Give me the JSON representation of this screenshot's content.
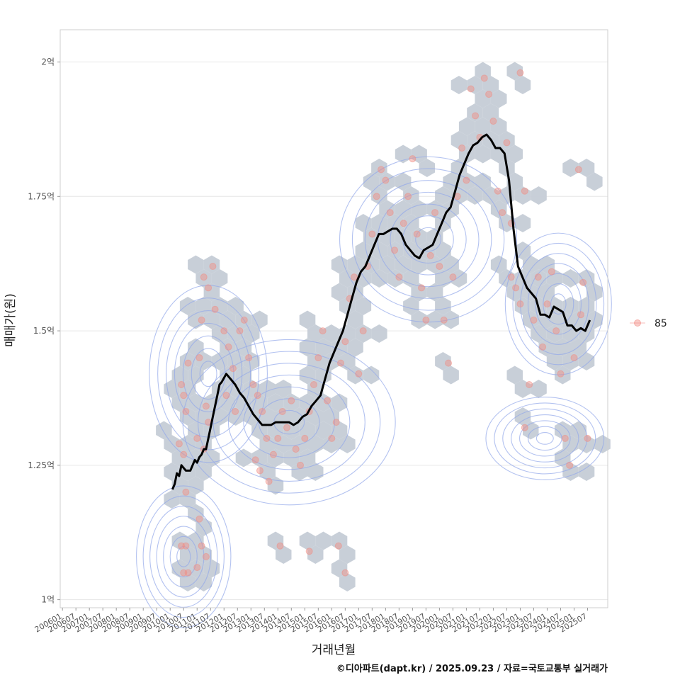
{
  "chart_data": {
    "type": "scatter",
    "xlabel": "거래년월",
    "ylabel": "매매가(원)",
    "caption": "©디아파트(dapt.kr) / 2025.09.23 / 자료=국토교통부 실거래가",
    "x_ticks": [
      "200601",
      "200607",
      "200701",
      "200707",
      "200801",
      "200807",
      "200901",
      "200907",
      "201001",
      "201007",
      "201101",
      "201107",
      "201201",
      "201207",
      "201301",
      "201307",
      "201401",
      "201407",
      "201501",
      "201507",
      "201601",
      "201607",
      "201701",
      "201707",
      "201801",
      "201807",
      "201901",
      "201907",
      "202001",
      "202007",
      "202101",
      "202107",
      "202201",
      "202207",
      "202301",
      "202307",
      "202401",
      "202407",
      "202501",
      "202507"
    ],
    "y_ticks": [
      {
        "value": 1.0,
        "label": "1억"
      },
      {
        "value": 1.25,
        "label": "1.25억"
      },
      {
        "value": 1.5,
        "label": "1.5억"
      },
      {
        "value": 1.75,
        "label": "1.75억"
      },
      {
        "value": 2.0,
        "label": "2억"
      }
    ],
    "xlim": [
      "2005-12",
      "2026-04"
    ],
    "ylim": [
      0.985,
      2.06
    ],
    "grid": true,
    "legend": {
      "position": "right",
      "entries": [
        {
          "label": "85",
          "color": "#f28b82"
        }
      ]
    },
    "colors": {
      "points": "#f28b82",
      "hex": "#c5ccd6",
      "contour": "#93a8ea",
      "trend": "#000000"
    },
    "trend_series": {
      "name": "moving-average",
      "x": [
        "2010-02",
        "2010-03",
        "2010-04",
        "2010-05",
        "2010-06",
        "2010-07",
        "2010-08",
        "2010-09",
        "2010-10",
        "2010-11",
        "2010-12",
        "2011-01",
        "2011-02",
        "2011-03",
        "2011-04",
        "2011-05",
        "2011-06",
        "2011-07",
        "2011-08",
        "2011-09",
        "2011-10",
        "2011-11",
        "2011-12",
        "2012-02",
        "2012-04",
        "2012-06",
        "2012-08",
        "2012-10",
        "2012-12",
        "2013-02",
        "2013-04",
        "2013-06",
        "2013-08",
        "2013-10",
        "2013-12",
        "2014-02",
        "2014-04",
        "2014-06",
        "2014-08",
        "2014-10",
        "2014-12",
        "2015-02",
        "2015-04",
        "2015-06",
        "2015-08",
        "2015-10",
        "2015-12",
        "2016-02",
        "2016-04",
        "2016-06",
        "2016-08",
        "2016-10",
        "2016-12",
        "2017-02",
        "2017-04",
        "2017-06",
        "2017-08",
        "2017-10",
        "2017-12",
        "2018-02",
        "2018-04",
        "2018-06",
        "2018-08",
        "2018-10",
        "2018-12",
        "2019-02",
        "2019-04",
        "2019-06",
        "2019-08",
        "2019-10",
        "2019-12",
        "2020-02",
        "2020-04",
        "2020-06",
        "2020-08",
        "2020-10",
        "2020-12",
        "2021-02",
        "2021-04",
        "2021-06",
        "2021-08",
        "2021-10",
        "2021-12",
        "2022-02",
        "2022-04",
        "2022-06",
        "2022-08",
        "2022-10",
        "2022-12",
        "2023-02",
        "2023-04",
        "2023-06",
        "2023-08",
        "2023-10",
        "2023-12",
        "2024-02",
        "2024-04",
        "2024-06",
        "2024-08",
        "2024-10",
        "2024-12",
        "2025-02",
        "2025-04",
        "2025-06",
        "2025-08"
      ],
      "y": [
        1.205,
        1.215,
        1.235,
        1.23,
        1.25,
        1.245,
        1.24,
        1.24,
        1.24,
        1.25,
        1.26,
        1.255,
        1.265,
        1.27,
        1.28,
        1.28,
        1.3,
        1.32,
        1.34,
        1.36,
        1.38,
        1.4,
        1.405,
        1.42,
        1.41,
        1.4,
        1.385,
        1.375,
        1.36,
        1.345,
        1.335,
        1.325,
        1.325,
        1.325,
        1.33,
        1.33,
        1.33,
        1.33,
        1.325,
        1.33,
        1.34,
        1.345,
        1.36,
        1.37,
        1.38,
        1.41,
        1.44,
        1.46,
        1.48,
        1.5,
        1.53,
        1.56,
        1.59,
        1.61,
        1.62,
        1.64,
        1.66,
        1.68,
        1.68,
        1.685,
        1.69,
        1.69,
        1.68,
        1.66,
        1.65,
        1.64,
        1.635,
        1.65,
        1.655,
        1.66,
        1.68,
        1.7,
        1.72,
        1.73,
        1.76,
        1.79,
        1.81,
        1.83,
        1.845,
        1.85,
        1.86,
        1.865,
        1.855,
        1.84,
        1.84,
        1.83,
        1.78,
        1.69,
        1.62,
        1.6,
        1.58,
        1.57,
        1.56,
        1.53,
        1.53,
        1.525,
        1.545,
        1.54,
        1.535,
        1.51,
        1.51,
        1.5,
        1.505,
        1.5,
        1.52
      ]
    },
    "points": [
      {
        "x": "2010-06",
        "y": 1.4
      },
      {
        "x": "2010-07",
        "y": 1.38
      },
      {
        "x": "2010-05",
        "y": 1.29
      },
      {
        "x": "2010-08",
        "y": 1.35
      },
      {
        "x": "2010-09",
        "y": 1.44
      },
      {
        "x": "2010-07",
        "y": 1.27
      },
      {
        "x": "2010-08",
        "y": 1.2
      },
      {
        "x": "2010-06",
        "y": 1.1
      },
      {
        "x": "2010-08",
        "y": 1.1
      },
      {
        "x": "2010-09",
        "y": 1.05
      },
      {
        "x": "2010-07",
        "y": 1.05
      },
      {
        "x": "2011-01",
        "y": 1.06
      },
      {
        "x": "2011-03",
        "y": 1.1
      },
      {
        "x": "2011-05",
        "y": 1.08
      },
      {
        "x": "2011-02",
        "y": 1.15
      },
      {
        "x": "2011-01",
        "y": 1.3
      },
      {
        "x": "2011-04",
        "y": 1.28
      },
      {
        "x": "2011-06",
        "y": 1.33
      },
      {
        "x": "2011-05",
        "y": 1.36
      },
      {
        "x": "2011-02",
        "y": 1.45
      },
      {
        "x": "2011-03",
        "y": 1.52
      },
      {
        "x": "2011-04",
        "y": 1.6
      },
      {
        "x": "2011-06",
        "y": 1.58
      },
      {
        "x": "2011-08",
        "y": 1.62
      },
      {
        "x": "2011-09",
        "y": 1.54
      },
      {
        "x": "2012-01",
        "y": 1.5
      },
      {
        "x": "2012-03",
        "y": 1.47
      },
      {
        "x": "2012-05",
        "y": 1.43
      },
      {
        "x": "2012-02",
        "y": 1.38
      },
      {
        "x": "2012-06",
        "y": 1.35
      },
      {
        "x": "2012-08",
        "y": 1.5
      },
      {
        "x": "2012-10",
        "y": 1.52
      },
      {
        "x": "2012-12",
        "y": 1.45
      },
      {
        "x": "2013-02",
        "y": 1.4
      },
      {
        "x": "2013-04",
        "y": 1.38
      },
      {
        "x": "2013-06",
        "y": 1.35
      },
      {
        "x": "2013-08",
        "y": 1.3
      },
      {
        "x": "2013-03",
        "y": 1.26
      },
      {
        "x": "2013-05",
        "y": 1.24
      },
      {
        "x": "2013-09",
        "y": 1.22
      },
      {
        "x": "2013-11",
        "y": 1.27
      },
      {
        "x": "2014-01",
        "y": 1.3
      },
      {
        "x": "2014-03",
        "y": 1.35
      },
      {
        "x": "2014-05",
        "y": 1.32
      },
      {
        "x": "2014-07",
        "y": 1.37
      },
      {
        "x": "2014-09",
        "y": 1.28
      },
      {
        "x": "2014-11",
        "y": 1.25
      },
      {
        "x": "2015-01",
        "y": 1.3
      },
      {
        "x": "2015-03",
        "y": 1.35
      },
      {
        "x": "2015-05",
        "y": 1.4
      },
      {
        "x": "2015-07",
        "y": 1.45
      },
      {
        "x": "2015-09",
        "y": 1.5
      },
      {
        "x": "2015-11",
        "y": 1.37
      },
      {
        "x": "2016-01",
        "y": 1.3
      },
      {
        "x": "2016-03",
        "y": 1.33
      },
      {
        "x": "2016-05",
        "y": 1.44
      },
      {
        "x": "2016-07",
        "y": 1.48
      },
      {
        "x": "2016-09",
        "y": 1.56
      },
      {
        "x": "2016-11",
        "y": 1.6
      },
      {
        "x": "2017-01",
        "y": 1.42
      },
      {
        "x": "2017-03",
        "y": 1.5
      },
      {
        "x": "2017-05",
        "y": 1.62
      },
      {
        "x": "2017-07",
        "y": 1.68
      },
      {
        "x": "2017-09",
        "y": 1.75
      },
      {
        "x": "2017-11",
        "y": 1.8
      },
      {
        "x": "2018-01",
        "y": 1.78
      },
      {
        "x": "2018-03",
        "y": 1.72
      },
      {
        "x": "2018-05",
        "y": 1.65
      },
      {
        "x": "2018-07",
        "y": 1.6
      },
      {
        "x": "2018-09",
        "y": 1.7
      },
      {
        "x": "2018-11",
        "y": 1.75
      },
      {
        "x": "2019-01",
        "y": 1.82
      },
      {
        "x": "2019-03",
        "y": 1.68
      },
      {
        "x": "2019-05",
        "y": 1.58
      },
      {
        "x": "2019-07",
        "y": 1.52
      },
      {
        "x": "2019-09",
        "y": 1.64
      },
      {
        "x": "2019-11",
        "y": 1.72
      },
      {
        "x": "2020-01",
        "y": 1.62
      },
      {
        "x": "2020-03",
        "y": 1.52
      },
      {
        "x": "2020-05",
        "y": 1.44
      },
      {
        "x": "2020-07",
        "y": 1.6
      },
      {
        "x": "2020-09",
        "y": 1.75
      },
      {
        "x": "2020-11",
        "y": 1.84
      },
      {
        "x": "2021-01",
        "y": 1.78
      },
      {
        "x": "2021-03",
        "y": 1.95
      },
      {
        "x": "2021-05",
        "y": 1.9
      },
      {
        "x": "2021-07",
        "y": 1.86
      },
      {
        "x": "2021-09",
        "y": 1.97
      },
      {
        "x": "2021-11",
        "y": 1.94
      },
      {
        "x": "2022-01",
        "y": 1.89
      },
      {
        "x": "2022-03",
        "y": 1.76
      },
      {
        "x": "2022-05",
        "y": 1.72
      },
      {
        "x": "2022-07",
        "y": 1.85
      },
      {
        "x": "2022-09",
        "y": 1.6
      },
      {
        "x": "2022-11",
        "y": 1.58
      },
      {
        "x": "2023-01",
        "y": 1.55
      },
      {
        "x": "2023-03",
        "y": 1.32
      },
      {
        "x": "2023-05",
        "y": 1.4
      },
      {
        "x": "2023-07",
        "y": 1.52
      },
      {
        "x": "2023-09",
        "y": 1.6
      },
      {
        "x": "2023-11",
        "y": 1.47
      },
      {
        "x": "2024-01",
        "y": 1.55
      },
      {
        "x": "2024-03",
        "y": 1.61
      },
      {
        "x": "2024-05",
        "y": 1.5
      },
      {
        "x": "2024-07",
        "y": 1.42
      },
      {
        "x": "2024-09",
        "y": 1.3
      },
      {
        "x": "2024-11",
        "y": 1.25
      },
      {
        "x": "2025-01",
        "y": 1.45
      },
      {
        "x": "2025-03",
        "y": 1.8
      },
      {
        "x": "2025-05",
        "y": 1.59
      },
      {
        "x": "2025-07",
        "y": 1.3
      },
      {
        "x": "2014-02",
        "y": 1.1
      },
      {
        "x": "2015-03",
        "y": 1.09
      },
      {
        "x": "2016-04",
        "y": 1.1
      },
      {
        "x": "2016-07",
        "y": 1.05
      },
      {
        "x": "2023-01",
        "y": 1.98
      },
      {
        "x": "2023-03",
        "y": 1.76
      },
      {
        "x": "2022-09",
        "y": 1.7
      },
      {
        "x": "2025-04",
        "y": 1.53
      }
    ]
  }
}
